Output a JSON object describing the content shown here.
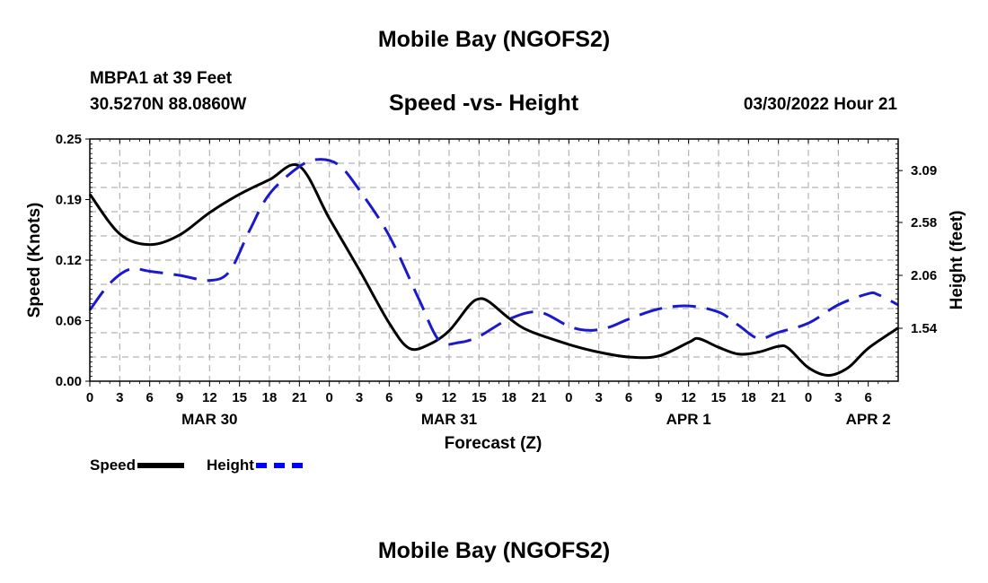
{
  "page": {
    "title": "Mobile Bay (NGOFS2)",
    "station": "MBPA1 at 39 Feet",
    "coordinates": "30.5270N  88.0860W",
    "subtitle": "Speed -vs- Height",
    "datetime": "03/30/2022 Hour 21",
    "footer_title": "Mobile Bay (NGOFS2)"
  },
  "legend": {
    "speed_label": "Speed",
    "height_label": "Height"
  },
  "colors": {
    "speed": "#000000",
    "height": "#1a1acc",
    "grid": "#b4b4b4"
  },
  "chart_data": {
    "type": "line",
    "title": "Speed -vs- Height",
    "xlabel": "Forecast (Z)",
    "ylabel": "Speed (Knots)",
    "y2label": "Height (feet)",
    "x_range_hours": [
      0,
      81
    ],
    "x_tick_labels": [
      "0",
      "3",
      "6",
      "9",
      "12",
      "15",
      "18",
      "21",
      "0",
      "3",
      "6",
      "9",
      "12",
      "15",
      "18",
      "21",
      "0",
      "3",
      "6",
      "9",
      "12",
      "15",
      "18",
      "21",
      "0",
      "3",
      "6"
    ],
    "date_labels": [
      {
        "label": "MAR 30",
        "hour": 12
      },
      {
        "label": "MAR 31",
        "hour": 36
      },
      {
        "label": "APR 1",
        "hour": 60
      },
      {
        "label": "APR 2",
        "hour": 78
      }
    ],
    "y_left": {
      "min": 0,
      "max": 0.25,
      "ticks": [
        "0.00",
        "0.06",
        "0.12",
        "0.19",
        "0.25"
      ]
    },
    "y_right": {
      "min": 1.02,
      "max": 3.4,
      "ticks": [
        "1.54",
        "2.06",
        "2.58",
        "3.09"
      ]
    },
    "grid": true,
    "series": [
      {
        "name": "Speed",
        "axis": "left",
        "style": "solid",
        "points": [
          [
            0,
            0.193
          ],
          [
            3,
            0.152
          ],
          [
            6,
            0.141
          ],
          [
            9,
            0.151
          ],
          [
            12,
            0.174
          ],
          [
            15,
            0.193
          ],
          [
            18,
            0.208
          ],
          [
            21,
            0.222
          ],
          [
            24,
            0.168
          ],
          [
            27,
            0.115
          ],
          [
            30,
            0.06
          ],
          [
            32,
            0.034
          ],
          [
            34,
            0.038
          ],
          [
            36,
            0.052
          ],
          [
            38,
            0.078
          ],
          [
            39,
            0.085
          ],
          [
            40,
            0.082
          ],
          [
            42,
            0.065
          ],
          [
            44,
            0.052
          ],
          [
            48,
            0.038
          ],
          [
            51,
            0.03
          ],
          [
            54,
            0.025
          ],
          [
            57,
            0.026
          ],
          [
            60,
            0.04
          ],
          [
            61,
            0.044
          ],
          [
            63,
            0.035
          ],
          [
            65,
            0.028
          ],
          [
            67,
            0.03
          ],
          [
            69,
            0.036
          ],
          [
            70,
            0.034
          ],
          [
            72,
            0.014
          ],
          [
            74,
            0.006
          ],
          [
            76,
            0.014
          ],
          [
            78,
            0.034
          ],
          [
            81,
            0.055
          ]
        ]
      },
      {
        "name": "Height",
        "axis": "right",
        "style": "dashed",
        "points": [
          [
            0,
            1.72
          ],
          [
            2,
            1.98
          ],
          [
            4,
            2.12
          ],
          [
            6,
            2.1
          ],
          [
            9,
            2.06
          ],
          [
            12,
            2.01
          ],
          [
            14,
            2.1
          ],
          [
            16,
            2.5
          ],
          [
            18,
            2.86
          ],
          [
            21,
            3.13
          ],
          [
            23,
            3.2
          ],
          [
            25,
            3.14
          ],
          [
            27,
            2.9
          ],
          [
            30,
            2.45
          ],
          [
            33,
            1.82
          ],
          [
            35,
            1.42
          ],
          [
            37,
            1.4
          ],
          [
            39,
            1.46
          ],
          [
            42,
            1.63
          ],
          [
            45,
            1.7
          ],
          [
            48,
            1.56
          ],
          [
            50,
            1.52
          ],
          [
            52,
            1.55
          ],
          [
            54,
            1.63
          ],
          [
            57,
            1.73
          ],
          [
            60,
            1.76
          ],
          [
            63,
            1.7
          ],
          [
            65,
            1.57
          ],
          [
            67,
            1.44
          ],
          [
            69,
            1.5
          ],
          [
            72,
            1.59
          ],
          [
            75,
            1.77
          ],
          [
            78,
            1.88
          ],
          [
            79,
            1.87
          ],
          [
            81,
            1.77
          ]
        ]
      }
    ]
  }
}
